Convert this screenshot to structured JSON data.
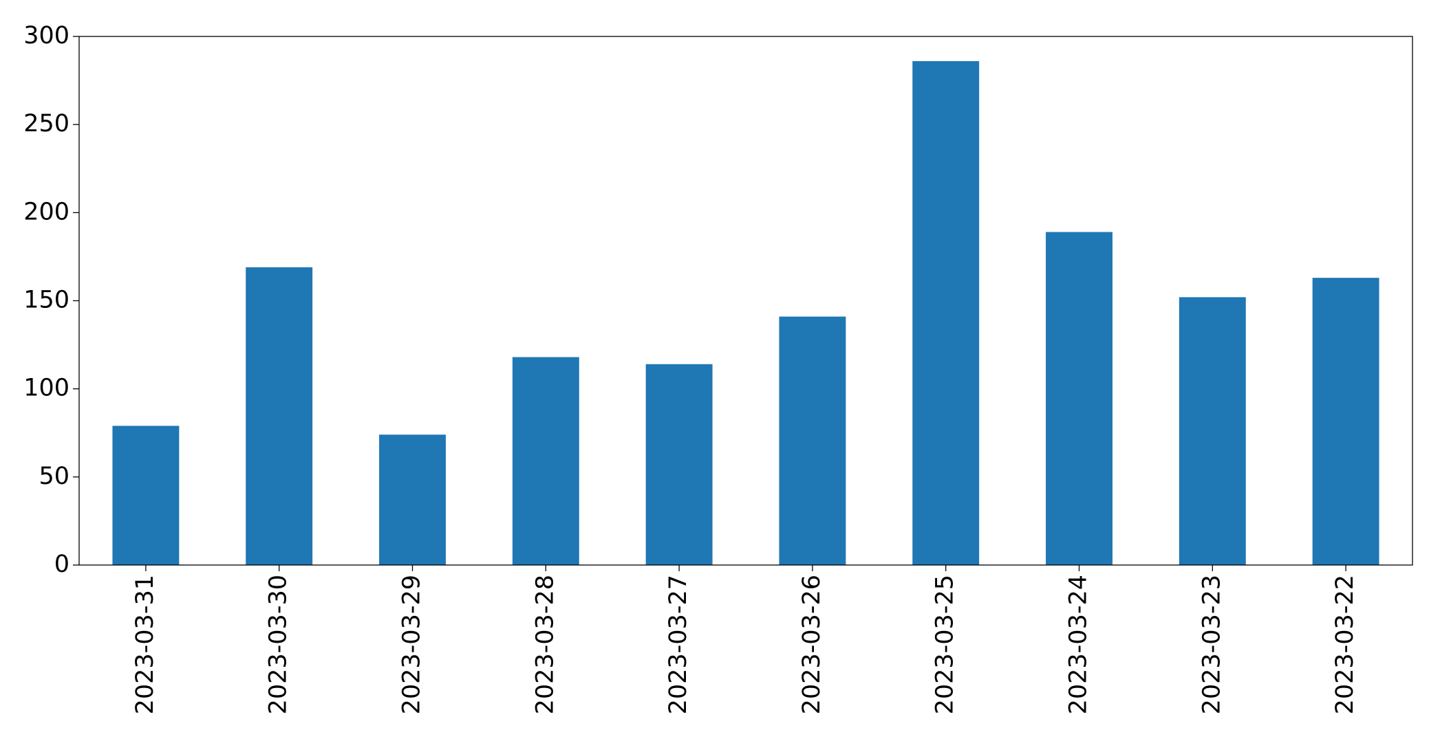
{
  "chart_data": {
    "type": "bar",
    "categories": [
      "2023-03-31",
      "2023-03-30",
      "2023-03-29",
      "2023-03-28",
      "2023-03-27",
      "2023-03-26",
      "2023-03-25",
      "2023-03-24",
      "2023-03-23",
      "2023-03-22"
    ],
    "values": [
      79,
      169,
      74,
      118,
      114,
      141,
      286,
      189,
      152,
      163
    ],
    "color": "#1f77b4",
    "ylim": [
      0,
      300
    ],
    "yticks": [
      0,
      50,
      100,
      150,
      200,
      250,
      300
    ],
    "grid": false
  }
}
